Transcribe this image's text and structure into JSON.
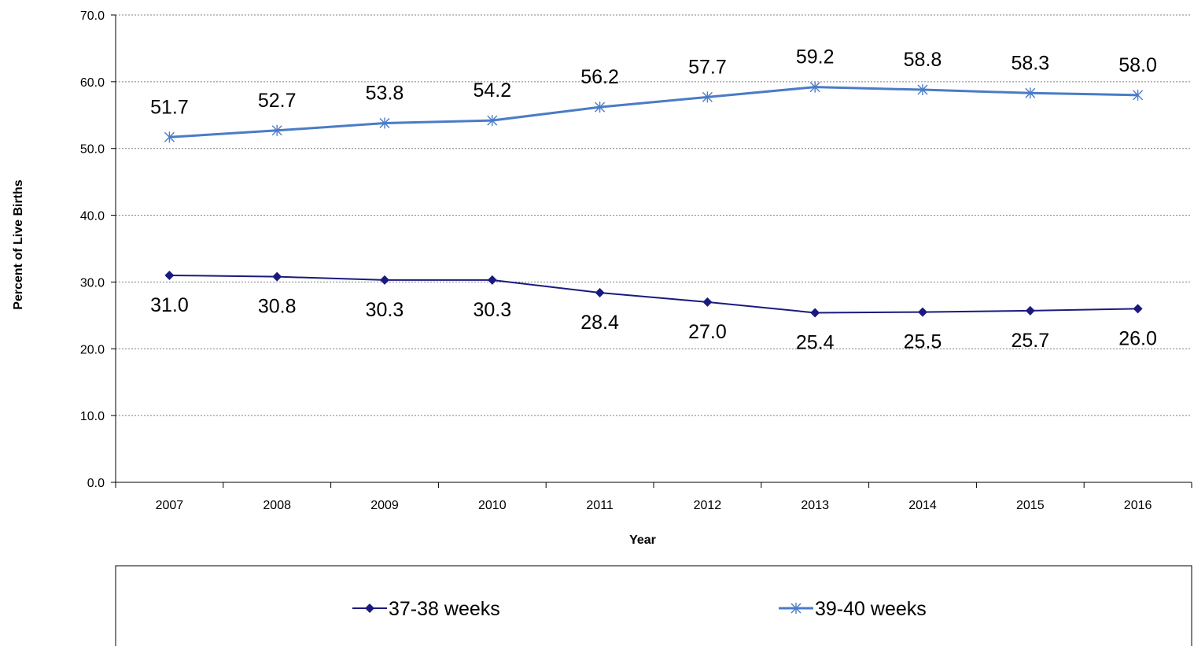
{
  "chart_data": {
    "type": "line",
    "categories": [
      "2007",
      "2008",
      "2009",
      "2010",
      "2011",
      "2012",
      "2013",
      "2014",
      "2015",
      "2016"
    ],
    "series": [
      {
        "name": "37-38 weeks",
        "values": [
          31.0,
          30.8,
          30.3,
          30.3,
          28.4,
          27.0,
          25.4,
          25.5,
          25.7,
          26.0
        ],
        "labels": [
          "31.0",
          "30.8",
          "30.3",
          "30.3",
          "28.4",
          "27.0",
          "25.4",
          "25.5",
          "25.7",
          "26.0"
        ],
        "color": "#1a1a7e",
        "marker": "diamond",
        "label_position": "below"
      },
      {
        "name": "39-40 weeks",
        "values": [
          51.7,
          52.7,
          53.8,
          54.2,
          56.2,
          57.7,
          59.2,
          58.8,
          58.3,
          58.0
        ],
        "labels": [
          "51.7",
          "52.7",
          "53.8",
          "54.2",
          "56.2",
          "57.7",
          "59.2",
          "58.8",
          "58.3",
          "58.0"
        ],
        "color": "#4a7cc7",
        "marker": "asterisk",
        "label_position": "above"
      }
    ],
    "xlabel": "Year",
    "ylabel": "Percent of Live Births",
    "ylim": [
      0,
      70
    ],
    "yticks": [
      "0.0",
      "10.0",
      "20.0",
      "30.0",
      "40.0",
      "50.0",
      "60.0",
      "70.0"
    ],
    "grid": true,
    "grid_color": "#808080",
    "legend_position": "bottom"
  }
}
